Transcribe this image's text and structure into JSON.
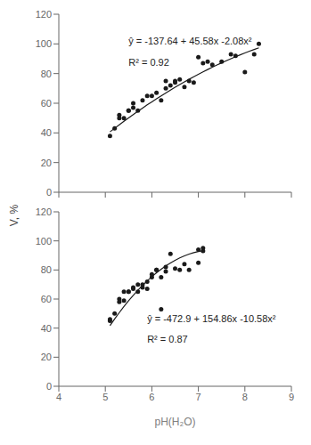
{
  "chart_data": [
    {
      "type": "scatter",
      "y_label": "V, %",
      "series": [
        {
          "type": "scatter",
          "color": "#1a1a1a",
          "marker": "circle",
          "x": [
            5.1,
            5.2,
            5.3,
            5.3,
            5.4,
            5.5,
            5.5,
            5.6,
            5.6,
            5.7,
            5.8,
            5.9,
            6.0,
            6.1,
            6.2,
            6.3,
            6.3,
            6.4,
            6.5,
            6.5,
            6.6,
            6.7,
            6.8,
            6.9,
            7.0,
            7.1,
            7.2,
            7.3,
            7.5,
            7.7,
            7.8,
            8.0,
            8.2,
            8.3
          ],
          "values": [
            38,
            43,
            50,
            52,
            50,
            55,
            55,
            57,
            60,
            55,
            62,
            65,
            65,
            67,
            62,
            70,
            75,
            72,
            75,
            74,
            76,
            71,
            75,
            74,
            91,
            87,
            88,
            86,
            88,
            93,
            92,
            81,
            93,
            100
          ]
        },
        {
          "type": "line",
          "color": "#1a1a1a",
          "line_style": "solid",
          "x": [
            5.1,
            5.2,
            5.3,
            5.4,
            5.5,
            5.6,
            5.7,
            5.8,
            5.9,
            6.0,
            6.1,
            6.2,
            6.3,
            6.4,
            6.5,
            6.6,
            6.7,
            6.8,
            6.9,
            7.0,
            7.1,
            7.2,
            7.3,
            7.4,
            7.5,
            7.6,
            7.7,
            7.8,
            7.9,
            8.0,
            8.1,
            8.2,
            8.3
          ],
          "values": [
            40.7172,
            43.1328,
            45.5068,
            47.8392,
            50.13,
            52.3792,
            54.5868,
            56.7528,
            58.8772,
            60.96,
            63.0012,
            65.0008,
            66.9588,
            68.8752,
            70.75,
            72.5832,
            74.3748,
            76.1248,
            77.8332,
            79.5,
            81.1252,
            82.7088,
            84.2508,
            85.7512,
            87.21,
            88.6272,
            90.0028,
            91.3368,
            92.6292,
            93.88,
            95.0892,
            96.2568,
            97.3828
          ]
        }
      ],
      "annotations": [
        "ŷ = -137.64 + 45.58x -2.08x²",
        "R² = 0.92"
      ],
      "xlim": [
        4,
        9
      ],
      "ylim": [
        0,
        120
      ],
      "xticks": [
        4,
        5,
        6,
        7,
        8,
        9
      ],
      "yticks": [
        0,
        20,
        40,
        60,
        80,
        100,
        120
      ],
      "tick_labels": "y",
      "grid": false
    },
    {
      "type": "scatter",
      "x_label": "pH(H₂O)",
      "series": [
        {
          "type": "scatter",
          "color": "#1a1a1a",
          "marker": "circle",
          "x": [
            5.1,
            5.1,
            5.2,
            5.3,
            5.3,
            5.4,
            5.4,
            5.5,
            5.5,
            5.6,
            5.6,
            5.7,
            5.7,
            5.8,
            5.8,
            5.9,
            5.9,
            6.0,
            6.0,
            6.1,
            6.1,
            6.2,
            6.2,
            6.3,
            6.3,
            6.4,
            6.5,
            6.6,
            6.7,
            6.8,
            7.0,
            7.0,
            7.1,
            7.1
          ],
          "values": [
            45,
            46,
            50,
            58,
            60,
            59,
            65,
            65,
            65,
            67,
            68,
            65,
            70,
            68,
            70,
            67,
            72,
            75,
            77,
            80,
            80,
            53,
            75,
            82,
            79,
            91,
            81,
            80,
            84,
            80,
            94,
            85,
            93,
            95
          ]
        },
        {
          "type": "line",
          "color": "#1a1a1a",
          "line_style": "solid",
          "x": [
            5.1,
            5.2,
            5.3,
            5.4,
            5.5,
            5.6,
            5.7,
            5.8,
            5.9,
            6.0,
            6.1,
            6.2,
            6.3,
            6.4,
            6.5,
            6.6,
            6.7,
            6.8,
            6.9,
            7.0,
            7.1
          ],
          "values": [
            41.7002,
            46.2888,
            50.6658,
            54.8312,
            58.785,
            62.5272,
            66.0578,
            69.3768,
            72.4842,
            75.38,
            78.0642,
            80.5368,
            82.7978,
            84.8472,
            86.685,
            88.3112,
            89.7258,
            90.9288,
            91.9202,
            92.7,
            93.2682
          ]
        }
      ],
      "annotations": [
        "ŷ = -472.9 + 154.86x -10.58x²",
        "R² = 0.87"
      ],
      "xlim": [
        4,
        9
      ],
      "ylim": [
        0,
        120
      ],
      "xticks": [
        4,
        5,
        6,
        7,
        8,
        9
      ],
      "yticks": [
        0,
        20,
        40,
        60,
        80,
        100,
        120
      ],
      "grid": false
    }
  ]
}
